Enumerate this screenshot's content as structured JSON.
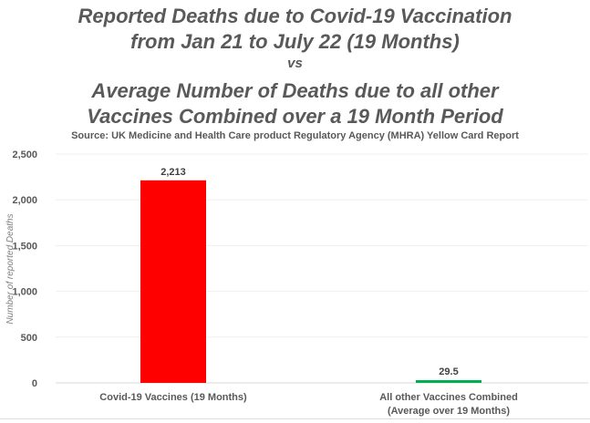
{
  "chart_data": {
    "type": "bar",
    "title_lines": [
      "Reported Deaths due to Covid-19 Vaccination",
      "from Jan 21 to July 22 (19 Months)",
      "vs",
      "Average Number of Deaths due to all other",
      "Vaccines Combined over a 19 Month Period"
    ],
    "subtitle": "Source: UK Medicine and Health Care product Regulatory Agency (MHRA) Yellow Card Report",
    "categories": [
      [
        "Covid-19 Vaccines (19 Months)"
      ],
      [
        "All other Vaccines Combined",
        "(Average over 19 Months)"
      ]
    ],
    "values": [
      2213,
      29.5
    ],
    "data_labels": [
      "2,213",
      "29.5"
    ],
    "colors": [
      "#ff0000",
      "#00b050"
    ],
    "xlabel": "",
    "ylabel": "Number of reported Deaths",
    "ylim": [
      0,
      2500
    ],
    "yticks": [
      0,
      500,
      1000,
      1500,
      2000,
      2500
    ],
    "ytick_labels": [
      "0",
      "500",
      "1,000",
      "1,500",
      "2,000",
      "2,500"
    ],
    "grid": true
  }
}
